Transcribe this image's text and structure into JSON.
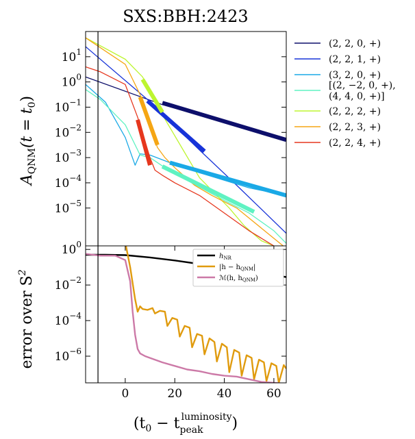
{
  "chart_data": [
    {
      "type": "line",
      "title": "SXS:BBH:2423",
      "ylabel_base": "A",
      "ylabel_sub": "QNM",
      "ylabel_arg": "(t = t",
      "ylabel_arg_sub": "0",
      "ylabel_close": ")",
      "yscale": "log",
      "xlim": [
        -16,
        65
      ],
      "ylim_log10": [
        -6.5,
        2
      ],
      "yticks": [
        {
          "base": "10",
          "exp": "1",
          "log": 1
        },
        {
          "base": "10",
          "exp": "0",
          "log": 0
        },
        {
          "base": "10",
          "exp": "−1",
          "log": -1
        },
        {
          "base": "10",
          "exp": "−2",
          "log": -2
        },
        {
          "base": "10",
          "exp": "−3",
          "log": -3
        },
        {
          "base": "10",
          "exp": "−4",
          "log": -4
        },
        {
          "base": "10",
          "exp": "−5",
          "log": -5
        }
      ],
      "vline_x": -11,
      "legend_placement": "outside-right",
      "series": [
        {
          "name": "(2, 2, 0, +)",
          "color": "#0d0f6b",
          "x": [
            -16,
            15,
            65
          ],
          "log10_y": [
            0.2,
            -0.9,
            -2.3
          ],
          "fit_x": [
            15,
            65
          ],
          "fit_log10_y": [
            -0.83,
            -2.3
          ]
        },
        {
          "name": "(2, 2, 1, +)",
          "color": "#1733d8",
          "x": [
            -16,
            9,
            30,
            45,
            65
          ],
          "log10_y": [
            1.4,
            -0.7,
            -2.7,
            -4.1,
            -6.0
          ],
          "fit_x": [
            9,
            32
          ],
          "fit_log10_y": [
            -0.75,
            -2.75
          ]
        },
        {
          "name": "(3, 2, 0, +)",
          "color": "#1aa9e6",
          "x": [
            -16,
            -8,
            0,
            4,
            6,
            10,
            18,
            30,
            50,
            65
          ],
          "log10_y": [
            -0.1,
            -0.8,
            -2.2,
            -3.3,
            -2.85,
            -2.9,
            -3.2,
            -3.6,
            -4.2,
            -4.5
          ],
          "fit_x": [
            18,
            65
          ],
          "fit_log10_y": [
            -3.2,
            -4.5
          ]
        },
        {
          "name_line1": "[(2, −2, 0, +),",
          "name_line2": "(4, 4, 0, +)]",
          "color": "#5ff2c2",
          "x": [
            -16,
            -10,
            0,
            6,
            10,
            16,
            25,
            40,
            50,
            60,
            65
          ],
          "log10_y": [
            -0.3,
            -0.7,
            -1.7,
            -2.9,
            -3.0,
            -3.4,
            -3.9,
            -4.7,
            -5.2,
            -5.9,
            -6.4
          ],
          "fit_x": [
            15,
            52
          ],
          "fit_log10_y": [
            -3.35,
            -5.15
          ]
        },
        {
          "name": "(2, 2, 2, +)",
          "color": "#bdf530",
          "x": [
            -16,
            0,
            7,
            15,
            30,
            42,
            48,
            55,
            60,
            65
          ],
          "log10_y": [
            1.75,
            0.9,
            0.2,
            -1.3,
            -3.8,
            -5.0,
            -5.7,
            -6.3,
            -6.5,
            -7.0
          ],
          "fit_x": [
            7,
            15
          ],
          "fit_log10_y": [
            0.1,
            -1.2
          ]
        },
        {
          "name": "(2, 2, 3, +)",
          "color": "#f5a614",
          "x": [
            -16,
            0,
            6,
            13,
            16,
            20,
            28,
            35,
            45,
            55,
            60,
            65
          ],
          "log10_y": [
            1.75,
            0.7,
            -0.5,
            -2.6,
            -3.0,
            -3.4,
            -4.1,
            -4.5,
            -5.0,
            -5.8,
            -6.2,
            -6.6
          ],
          "fit_x": [
            6,
            13
          ],
          "fit_log10_y": [
            -0.6,
            -2.5
          ]
        },
        {
          "name": "(2, 2, 4, +)",
          "color": "#e6371e",
          "x": [
            -16,
            -10,
            0,
            5,
            10,
            12,
            15,
            20,
            30,
            40,
            50,
            60,
            65
          ],
          "log10_y": [
            0.6,
            0.4,
            -0.1,
            -1.4,
            -3.0,
            -3.5,
            -3.7,
            -4.0,
            -4.5,
            -5.2,
            -5.9,
            -6.5,
            -6.8
          ],
          "fit_x": [
            5,
            10
          ],
          "fit_log10_y": [
            -1.5,
            -3.3
          ]
        }
      ]
    },
    {
      "type": "line",
      "ylabel": "error over S",
      "ylabel_sup": "2",
      "xlabel_open": "(t",
      "xlabel_sub0": "0",
      "xlabel_mid": " − t",
      "xlabel_sub": "peak",
      "xlabel_sup": "luminosity",
      "xlabel_close": ")",
      "yscale": "log",
      "xlim": [
        -16,
        65
      ],
      "ylim_log10": [
        -7.5,
        0.2
      ],
      "xticks": [
        "0",
        "20",
        "40",
        "60"
      ],
      "xtick_values": [
        0,
        20,
        40,
        60
      ],
      "yticks": [
        {
          "base": "10",
          "exp": "0",
          "log": 0
        },
        {
          "base": "10",
          "exp": "−2",
          "log": -2
        },
        {
          "base": "10",
          "exp": "−4",
          "log": -4
        },
        {
          "base": "10",
          "exp": "−6",
          "log": -6
        }
      ],
      "vline_x": -11,
      "legend_placement": "top-right",
      "series": [
        {
          "name": "h_NR",
          "legend": {
            "base": "h",
            "sub": "NR"
          },
          "color": "#000000",
          "x": [
            -16,
            -8,
            0,
            10,
            20,
            30,
            40,
            50,
            60,
            65
          ],
          "log10_y": [
            -0.3,
            -0.3,
            -0.32,
            -0.45,
            -0.62,
            -0.82,
            -1.02,
            -1.22,
            -1.45,
            -1.55
          ]
        },
        {
          "name": "|h − h_QNM|",
          "legend": {
            "pre": "|h − h",
            "sub": "QNM",
            "post": "|"
          },
          "color": "#e09b0e",
          "x": [
            -16,
            0,
            2,
            4,
            5,
            6,
            7,
            9,
            11,
            12,
            14,
            16,
            17,
            19,
            21,
            22,
            24,
            26,
            27,
            29,
            31,
            32,
            34,
            36,
            37,
            39,
            41,
            42,
            44,
            46,
            47,
            49,
            51,
            52,
            54,
            56,
            57,
            59,
            61,
            62,
            64,
            65
          ],
          "log10_y": [
            0.5,
            0.4,
            -1.0,
            -2.8,
            -3.5,
            -3.2,
            -3.35,
            -3.4,
            -3.3,
            -3.6,
            -3.45,
            -3.5,
            -4.3,
            -3.85,
            -3.95,
            -4.9,
            -4.3,
            -4.4,
            -5.5,
            -4.75,
            -4.85,
            -5.9,
            -5.0,
            -5.2,
            -6.3,
            -5.3,
            -5.5,
            -6.9,
            -5.65,
            -5.8,
            -7.1,
            -5.95,
            -6.1,
            -7.3,
            -6.2,
            -6.35,
            -7.4,
            -6.4,
            -6.55,
            -7.5,
            -6.5,
            -6.7
          ]
        },
        {
          "name": "M(h, h_QNM)",
          "legend": {
            "pre": "ℳ(h, h",
            "sub": "QNM",
            "post": ")"
          },
          "color": "#cc79a7",
          "x": [
            -16,
            -10,
            -4,
            0,
            2,
            3,
            4,
            5,
            6,
            8,
            10,
            15,
            20,
            25,
            30,
            35,
            40,
            45,
            50,
            55,
            60,
            65
          ],
          "log10_y": [
            -0.25,
            -0.35,
            -0.35,
            -0.6,
            -1.8,
            -3.5,
            -4.8,
            -5.6,
            -5.85,
            -6.0,
            -6.1,
            -6.35,
            -6.55,
            -6.75,
            -6.85,
            -7.0,
            -7.1,
            -7.15,
            -7.3,
            -7.45,
            -7.5,
            -7.55
          ]
        }
      ]
    }
  ]
}
